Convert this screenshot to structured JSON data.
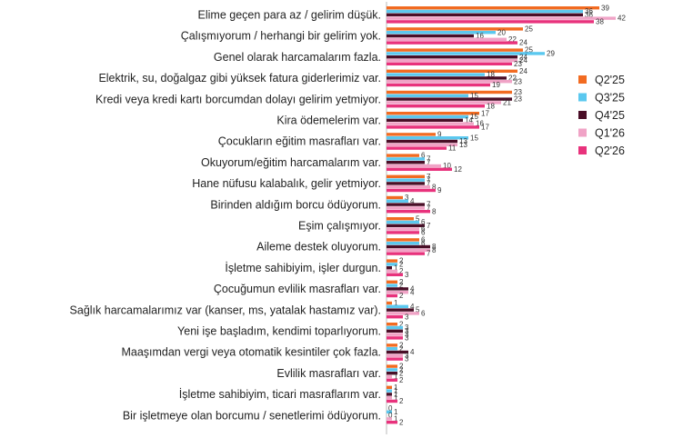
{
  "chart_data": {
    "type": "bar",
    "orientation": "horizontal",
    "categories": [
      "Elime geçen para az / gelirim düşük.",
      "Çalışmıyorum / herhangi bir gelirim yok.",
      "Genel olarak harcamalarım fazla.",
      "Elektrik, su, doğalgaz gibi yüksek fatura giderlerimiz var.",
      "Kredi veya kredi kartı borcumdan dolayı gelirim yetmiyor.",
      "Kira ödemelerim var.",
      "Çocukların eğitim masrafları var.",
      "Okuyorum/eğitim harcamalarım var.",
      "Hane nüfusu kalabalık, gelir yetmiyor.",
      "Birinden aldığım borcu ödüyorum.",
      "Eşim çalışmıyor.",
      "Aileme destek oluyorum.",
      "İşletme sahibiyim, işler durgun.",
      "Çocuğumun evlilik masrafları var.",
      "Sağlık harcamalarımız var (kanser, ms, yatalak hastamız var).",
      "Yeni işe başladım, kendimi toparlıyorum.",
      "Maaşımdan vergi veya otomatik kesintiler çok fazla.",
      "Evlilik masrafları var.",
      "İşletme sahibiyim, ticari masraflarım var.",
      "Bir işletmeye olan borcumu / senetlerimi ödüyorum."
    ],
    "series": [
      {
        "name": "Q2'25",
        "color": "#f26b21",
        "values": [
          39,
          25,
          25,
          24,
          23,
          17,
          9,
          6,
          7,
          3,
          5,
          6,
          2,
          2,
          1,
          2,
          2,
          2,
          1,
          0
        ]
      },
      {
        "name": "Q3'25",
        "color": "#5bc8ef",
        "values": [
          36,
          20,
          29,
          18,
          15,
          15,
          15,
          7,
          7,
          4,
          6,
          6,
          2,
          2,
          4,
          3,
          2,
          2,
          1,
          1
        ]
      },
      {
        "name": "Q4'25",
        "color": "#4a0e27",
        "values": [
          36,
          16,
          24,
          22,
          23,
          14,
          13,
          7,
          7,
          7,
          7,
          8,
          1,
          4,
          5,
          3,
          4,
          2,
          1,
          0
        ]
      },
      {
        "name": "Q1'26",
        "color": "#f0a3c6",
        "values": [
          42,
          22,
          24,
          23,
          21,
          16,
          13,
          10,
          8,
          7,
          6,
          8,
          2,
          4,
          6,
          3,
          3,
          1,
          1,
          1
        ]
      },
      {
        "name": "Q2'26",
        "color": "#e8327c",
        "values": [
          38,
          24,
          23,
          19,
          18,
          17,
          11,
          12,
          9,
          8,
          6,
          7,
          3,
          2,
          3,
          3,
          3,
          2,
          2,
          2
        ]
      }
    ],
    "xlim": [
      0,
      44
    ],
    "legend_position": "right"
  }
}
